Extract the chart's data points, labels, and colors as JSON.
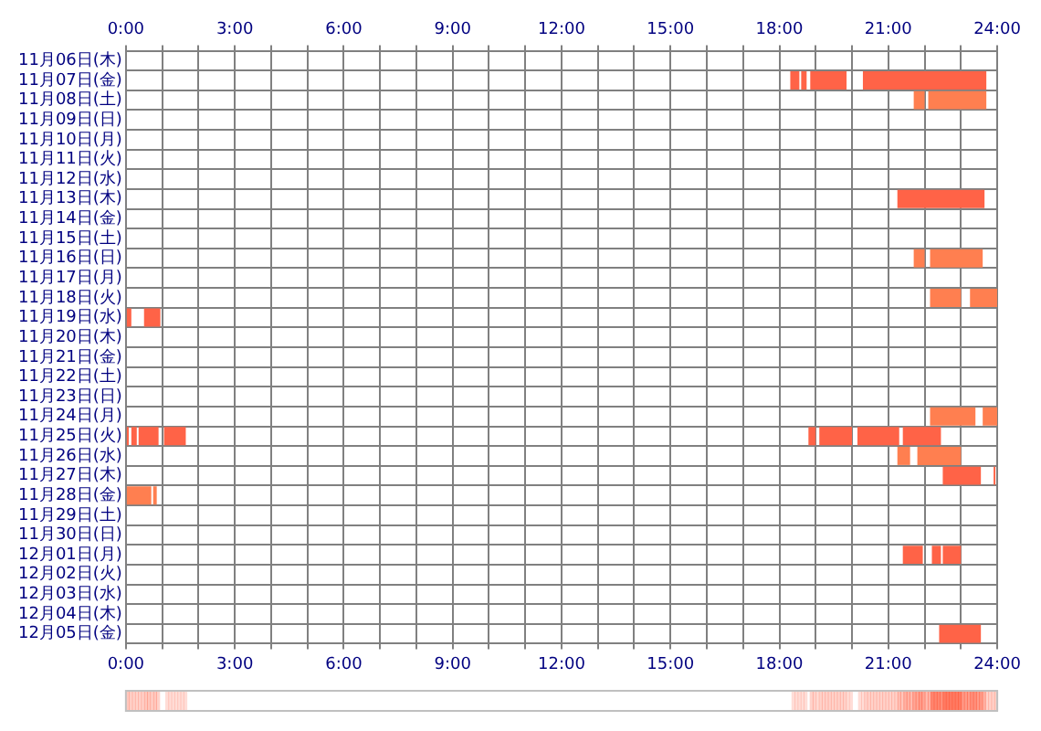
{
  "chart_data": {
    "type": "bar",
    "orientation": "horizontal",
    "categories": [
      "11月06日(木)",
      "11月07日(金)",
      "11月08日(土)",
      "11月09日(日)",
      "11月10日(月)",
      "11月11日(火)",
      "11月12日(水)",
      "11月13日(木)",
      "11月14日(金)",
      "11月15日(土)",
      "11月16日(日)",
      "11月17日(月)",
      "11月18日(火)",
      "11月19日(水)",
      "11月20日(木)",
      "11月21日(金)",
      "11月22日(土)",
      "11月23日(日)",
      "11月24日(月)",
      "11月25日(火)",
      "11月26日(水)",
      "11月27日(木)",
      "11月28日(金)",
      "11月29日(土)",
      "11月30日(日)",
      "12月01日(月)",
      "12月02日(火)",
      "12月03日(水)",
      "12月04日(木)",
      "12月05日(金)"
    ],
    "series": [
      {
        "base": [
          null,
          18.3,
          21.7,
          null,
          null,
          null,
          null,
          21.25,
          null,
          null,
          21.7,
          null,
          22.15,
          0,
          null,
          null,
          null,
          null,
          22.15,
          0,
          21.25,
          22.5,
          0,
          null,
          null,
          21.4,
          null,
          null,
          null,
          22.4
        ],
        "values": [
          null,
          0.25,
          0.3,
          null,
          null,
          null,
          null,
          2.4,
          null,
          null,
          0.3,
          null,
          0.85,
          0.15,
          null,
          null,
          null,
          null,
          1.25,
          0.08,
          0.35,
          1.05,
          0.7,
          null,
          null,
          0.55,
          null,
          null,
          null,
          1.15
        ],
        "colors": [
          null,
          "#ff6347",
          "#ff7f50",
          null,
          null,
          null,
          null,
          "#ff6347",
          null,
          null,
          "#ff7f50",
          null,
          "#ff7f50",
          "#ff6347",
          null,
          null,
          null,
          null,
          "#ff7f50",
          "#ff6347",
          "#ff7f50",
          "#ff6347",
          "#ff7f50",
          null,
          null,
          "#ff6347",
          null,
          null,
          null,
          "#ff6347"
        ]
      },
      {
        "base": [
          null,
          18.6,
          22.1,
          null,
          null,
          null,
          null,
          null,
          null,
          null,
          22.15,
          null,
          23.25,
          0.5,
          null,
          null,
          null,
          null,
          23.6,
          0.15,
          21.8,
          23.9,
          0.75,
          null,
          null,
          22.2,
          null,
          null,
          null,
          null
        ],
        "values": [
          null,
          0.15,
          1.6,
          null,
          null,
          null,
          null,
          null,
          null,
          null,
          1.45,
          null,
          0.75,
          0.45,
          null,
          null,
          null,
          null,
          0.4,
          0.15,
          1.2,
          0.05,
          0.1,
          null,
          null,
          0.25,
          null,
          null,
          null,
          null
        ],
        "colors": [
          null,
          "#ff6347",
          "#ff7f50",
          null,
          null,
          null,
          null,
          null,
          null,
          null,
          "#ff7f50",
          null,
          "#ff7f50",
          "#ff6347",
          null,
          null,
          null,
          null,
          "#ff7f50",
          "#ff6347",
          "#ff7f50",
          "#ff6347",
          "#ff7f50",
          null,
          null,
          "#ff6347",
          null,
          null,
          null,
          null
        ]
      },
      {
        "color": "#ff6347",
        "base": [
          null,
          18.85,
          null,
          null,
          null,
          null,
          null,
          null,
          null,
          null,
          null,
          null,
          null,
          null,
          null,
          null,
          null,
          null,
          null,
          0.35,
          null,
          null,
          null,
          null,
          null,
          22.5,
          null,
          null,
          null,
          null
        ],
        "values": [
          null,
          1.0,
          null,
          null,
          null,
          null,
          null,
          null,
          null,
          null,
          null,
          null,
          null,
          null,
          null,
          null,
          null,
          null,
          null,
          0.55,
          null,
          null,
          null,
          null,
          null,
          0.5,
          null,
          null,
          null,
          null
        ]
      },
      {
        "color": "#ff6347",
        "base": [
          null,
          20.3,
          null,
          null,
          null,
          null,
          null,
          null,
          null,
          null,
          null,
          null,
          null,
          null,
          null,
          null,
          null,
          null,
          null,
          1.05,
          null,
          null,
          null,
          null,
          null,
          null,
          null,
          null,
          null,
          null
        ],
        "values": [
          null,
          3.4,
          null,
          null,
          null,
          null,
          null,
          null,
          null,
          null,
          null,
          null,
          null,
          null,
          null,
          null,
          null,
          null,
          null,
          0.6,
          null,
          null,
          null,
          null,
          null,
          null,
          null,
          null,
          null,
          null
        ]
      },
      {
        "color": "#ff6347",
        "base": [
          null,
          null,
          null,
          null,
          null,
          null,
          null,
          null,
          null,
          null,
          null,
          null,
          null,
          null,
          null,
          null,
          null,
          null,
          null,
          18.8,
          null,
          null,
          null,
          null,
          null,
          null,
          null,
          null,
          null,
          null
        ],
        "values": [
          null,
          null,
          null,
          null,
          null,
          null,
          null,
          null,
          null,
          null,
          null,
          null,
          null,
          null,
          null,
          null,
          null,
          null,
          null,
          0.2,
          null,
          null,
          null,
          null,
          null,
          null,
          null,
          null,
          null,
          null
        ]
      },
      {
        "color": "#ff6347",
        "base": [
          null,
          null,
          null,
          null,
          null,
          null,
          null,
          null,
          null,
          null,
          null,
          null,
          null,
          null,
          null,
          null,
          null,
          null,
          null,
          19.1,
          null,
          null,
          null,
          null,
          null,
          null,
          null,
          null,
          null,
          null
        ],
        "values": [
          null,
          null,
          null,
          null,
          null,
          null,
          null,
          null,
          null,
          null,
          null,
          null,
          null,
          null,
          null,
          null,
          null,
          null,
          null,
          0.9,
          null,
          null,
          null,
          null,
          null,
          null,
          null,
          null,
          null,
          null
        ]
      },
      {
        "color": "#ff6347",
        "base": [
          null,
          null,
          null,
          null,
          null,
          null,
          null,
          null,
          null,
          null,
          null,
          null,
          null,
          null,
          null,
          null,
          null,
          null,
          null,
          20.15,
          null,
          null,
          null,
          null,
          null,
          null,
          null,
          null,
          null,
          null
        ],
        "values": [
          null,
          null,
          null,
          null,
          null,
          null,
          null,
          null,
          null,
          null,
          null,
          null,
          null,
          null,
          null,
          null,
          null,
          null,
          null,
          1.15,
          null,
          null,
          null,
          null,
          null,
          null,
          null,
          null,
          null,
          null
        ]
      },
      {
        "color": "#ff6347",
        "base": [
          null,
          null,
          null,
          null,
          null,
          null,
          null,
          null,
          null,
          null,
          null,
          null,
          null,
          null,
          null,
          null,
          null,
          null,
          null,
          21.4,
          null,
          null,
          null,
          null,
          null,
          null,
          null,
          null,
          null,
          null
        ],
        "values": [
          null,
          null,
          null,
          null,
          null,
          null,
          null,
          null,
          null,
          null,
          null,
          null,
          null,
          null,
          null,
          null,
          null,
          null,
          null,
          1.05,
          null,
          null,
          null,
          null,
          null,
          null,
          null,
          null,
          null,
          null
        ]
      }
    ],
    "xlim": [
      0,
      24
    ],
    "xticks": [
      {
        "value": 0,
        "label": "0:00"
      },
      {
        "value": 1,
        "label": null
      },
      {
        "value": 2,
        "label": null
      },
      {
        "value": 3,
        "label": "3:00"
      },
      {
        "value": 4,
        "label": null
      },
      {
        "value": 5,
        "label": null
      },
      {
        "value": 6,
        "label": "6:00"
      },
      {
        "value": 7,
        "label": null
      },
      {
        "value": 8,
        "label": null
      },
      {
        "value": 9,
        "label": "9:00"
      },
      {
        "value": 10,
        "label": null
      },
      {
        "value": 11,
        "label": null
      },
      {
        "value": 12,
        "label": "12:00"
      },
      {
        "value": 13,
        "label": null
      },
      {
        "value": 14,
        "label": null
      },
      {
        "value": 15,
        "label": "15:00"
      },
      {
        "value": 16,
        "label": null
      },
      {
        "value": 17,
        "label": null
      },
      {
        "value": 18,
        "label": "18:00"
      },
      {
        "value": 19,
        "label": null
      },
      {
        "value": 20,
        "label": null
      },
      {
        "value": 21,
        "label": "21:00"
      },
      {
        "value": 22,
        "label": null
      },
      {
        "value": 23,
        "label": null
      },
      {
        "value": 24,
        "label": "24:00"
      }
    ],
    "x2lim": [
      0,
      24
    ],
    "x2ticks": [
      {
        "value": 0,
        "label": "0:00"
      },
      {
        "value": 1,
        "label": null
      },
      {
        "value": 2,
        "label": null
      },
      {
        "value": 3,
        "label": "3:00"
      },
      {
        "value": 4,
        "label": null
      },
      {
        "value": 5,
        "label": null
      },
      {
        "value": 6,
        "label": "6:00"
      },
      {
        "value": 7,
        "label": null
      },
      {
        "value": 8,
        "label": null
      },
      {
        "value": 9,
        "label": "9:00"
      },
      {
        "value": 10,
        "label": null
      },
      {
        "value": 11,
        "label": null
      },
      {
        "value": 12,
        "label": "12:00"
      },
      {
        "value": 13,
        "label": null
      },
      {
        "value": 14,
        "label": null
      },
      {
        "value": 15,
        "label": "15:00"
      },
      {
        "value": 16,
        "label": null
      },
      {
        "value": 17,
        "label": null
      },
      {
        "value": 18,
        "label": "18:00"
      },
      {
        "value": 19,
        "label": null
      },
      {
        "value": 20,
        "label": null
      },
      {
        "value": 21,
        "label": "21:00"
      },
      {
        "value": 22,
        "label": null
      },
      {
        "value": 23,
        "label": null
      },
      {
        "value": 24,
        "label": "24:00"
      }
    ],
    "grid": true,
    "legend": false
  }
}
